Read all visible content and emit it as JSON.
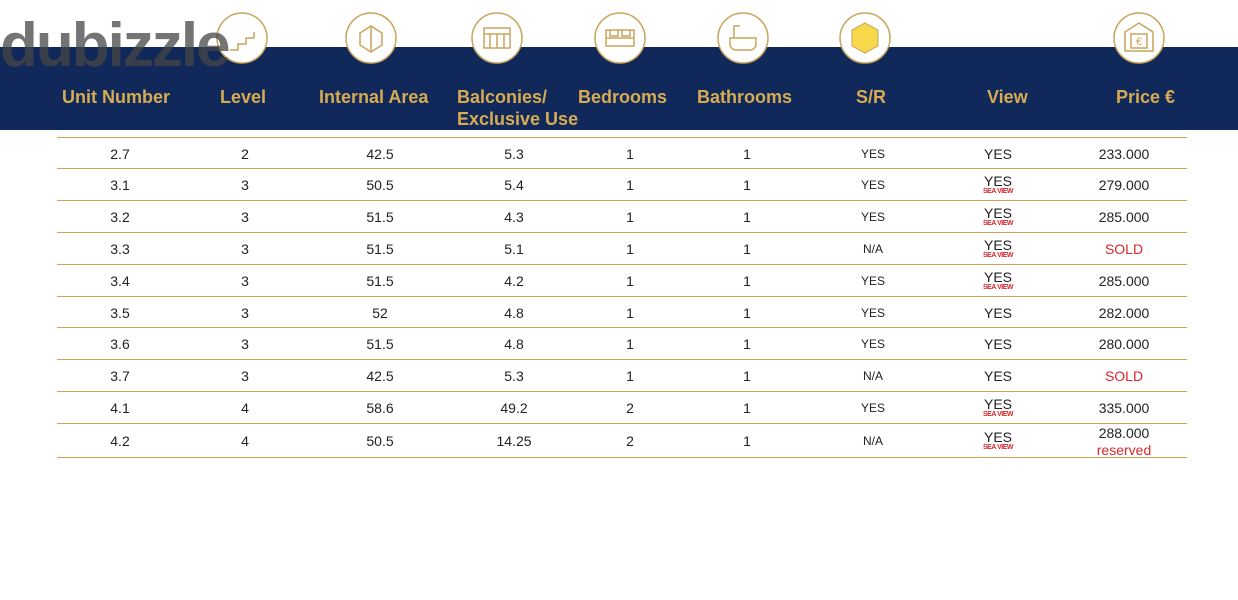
{
  "watermark": "dubizzle",
  "header": {
    "columns": [
      "Unit Number",
      "Level",
      "Internal Area",
      "Balconies/\nExclusive Use",
      "Bedrooms",
      "Bathrooms",
      "S/R",
      "View",
      "Price €"
    ]
  },
  "table": {
    "rows": [
      {
        "cells": [
          "2.7",
          "2",
          "42.5",
          "5.3",
          "1",
          "1",
          "YES",
          "YES",
          "233.000"
        ]
      },
      {
        "cells": [
          "3.1",
          "3",
          "50.5",
          "5.4",
          "1",
          "1",
          "YES",
          "YES",
          "279.000"
        ],
        "view_note": "SEA VIEW"
      },
      {
        "cells": [
          "3.2",
          "3",
          "51.5",
          "4.3",
          "1",
          "1",
          "YES",
          "YES",
          "285.000"
        ],
        "view_note": "SEA VIEW"
      },
      {
        "cells": [
          "3.3",
          "3",
          "51.5",
          "5.1",
          "1",
          "1",
          "N/A",
          "YES",
          "SOLD"
        ],
        "view_note": "SEA VIEW",
        "price_color": "#d9262c"
      },
      {
        "cells": [
          "3.4",
          "3",
          "51.5",
          "4.2",
          "1",
          "1",
          "YES",
          "YES",
          "285.000"
        ],
        "view_note": "SEA VIEW"
      },
      {
        "cells": [
          "3.5",
          "3",
          "52",
          "4.8",
          "1",
          "1",
          "YES",
          "YES",
          "282.000"
        ]
      },
      {
        "cells": [
          "3.6",
          "3",
          "51.5",
          "4.8",
          "1",
          "1",
          "YES",
          "YES",
          "280.000"
        ]
      },
      {
        "cells": [
          "3.7",
          "3",
          "42.5",
          "5.3",
          "1",
          "1",
          "N/A",
          "YES",
          "SOLD"
        ],
        "price_color": "#d9262c"
      },
      {
        "cells": [
          "4.1",
          "4",
          "58.6",
          "49.2",
          "2",
          "1",
          "YES",
          "YES",
          "335.000"
        ],
        "view_note": "SEA VIEW"
      },
      {
        "cells": [
          "4.2",
          "4",
          "50.5",
          "14.25",
          "2",
          "1",
          "N/A",
          "YES",
          "288.000"
        ],
        "view_note": "SEA VIEW",
        "price_note": "reserved"
      }
    ]
  }
}
